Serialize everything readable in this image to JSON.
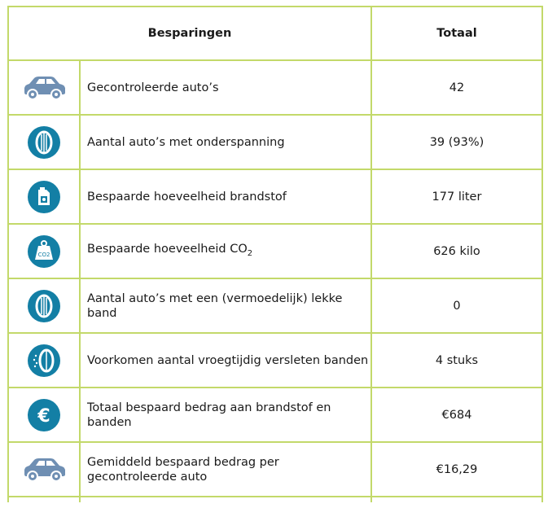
{
  "table": {
    "header": {
      "savings": "Besparingen",
      "total": "Totaal"
    },
    "rows": [
      {
        "icon": "car-icon",
        "label": "Gecontroleerde auto’s",
        "value": "42"
      },
      {
        "icon": "tire-icon",
        "label": "Aantal auto’s met onderspanning",
        "value": "39 (93%)"
      },
      {
        "icon": "fuel-can-icon",
        "label": "Bespaarde hoeveelheid brandstof",
        "value": "177 liter"
      },
      {
        "icon": "co2-weight-icon",
        "label_pre": "Bespaarde hoeveelheid CO",
        "label_sub": "2",
        "value": "626 kilo"
      },
      {
        "icon": "tire-icon",
        "label": "Aantal auto’s met een (vermoedelijk) lekke band",
        "value": "0"
      },
      {
        "icon": "worn-tire-icon",
        "label": "Voorkomen aantal vroegtijdig versleten banden",
        "value": "4 stuks"
      },
      {
        "icon": "euro-icon",
        "label": "Totaal bespaard bedrag aan brandstof en banden",
        "value": "€684"
      },
      {
        "icon": "car-icon",
        "label": "Gemiddeld bespaard bedrag per gecontroleerde auto",
        "value": "€16,29"
      }
    ],
    "icon_colors": {
      "car": "#6f8fb3",
      "badge": "#137fa5"
    },
    "border_color": "#c3d96a"
  }
}
